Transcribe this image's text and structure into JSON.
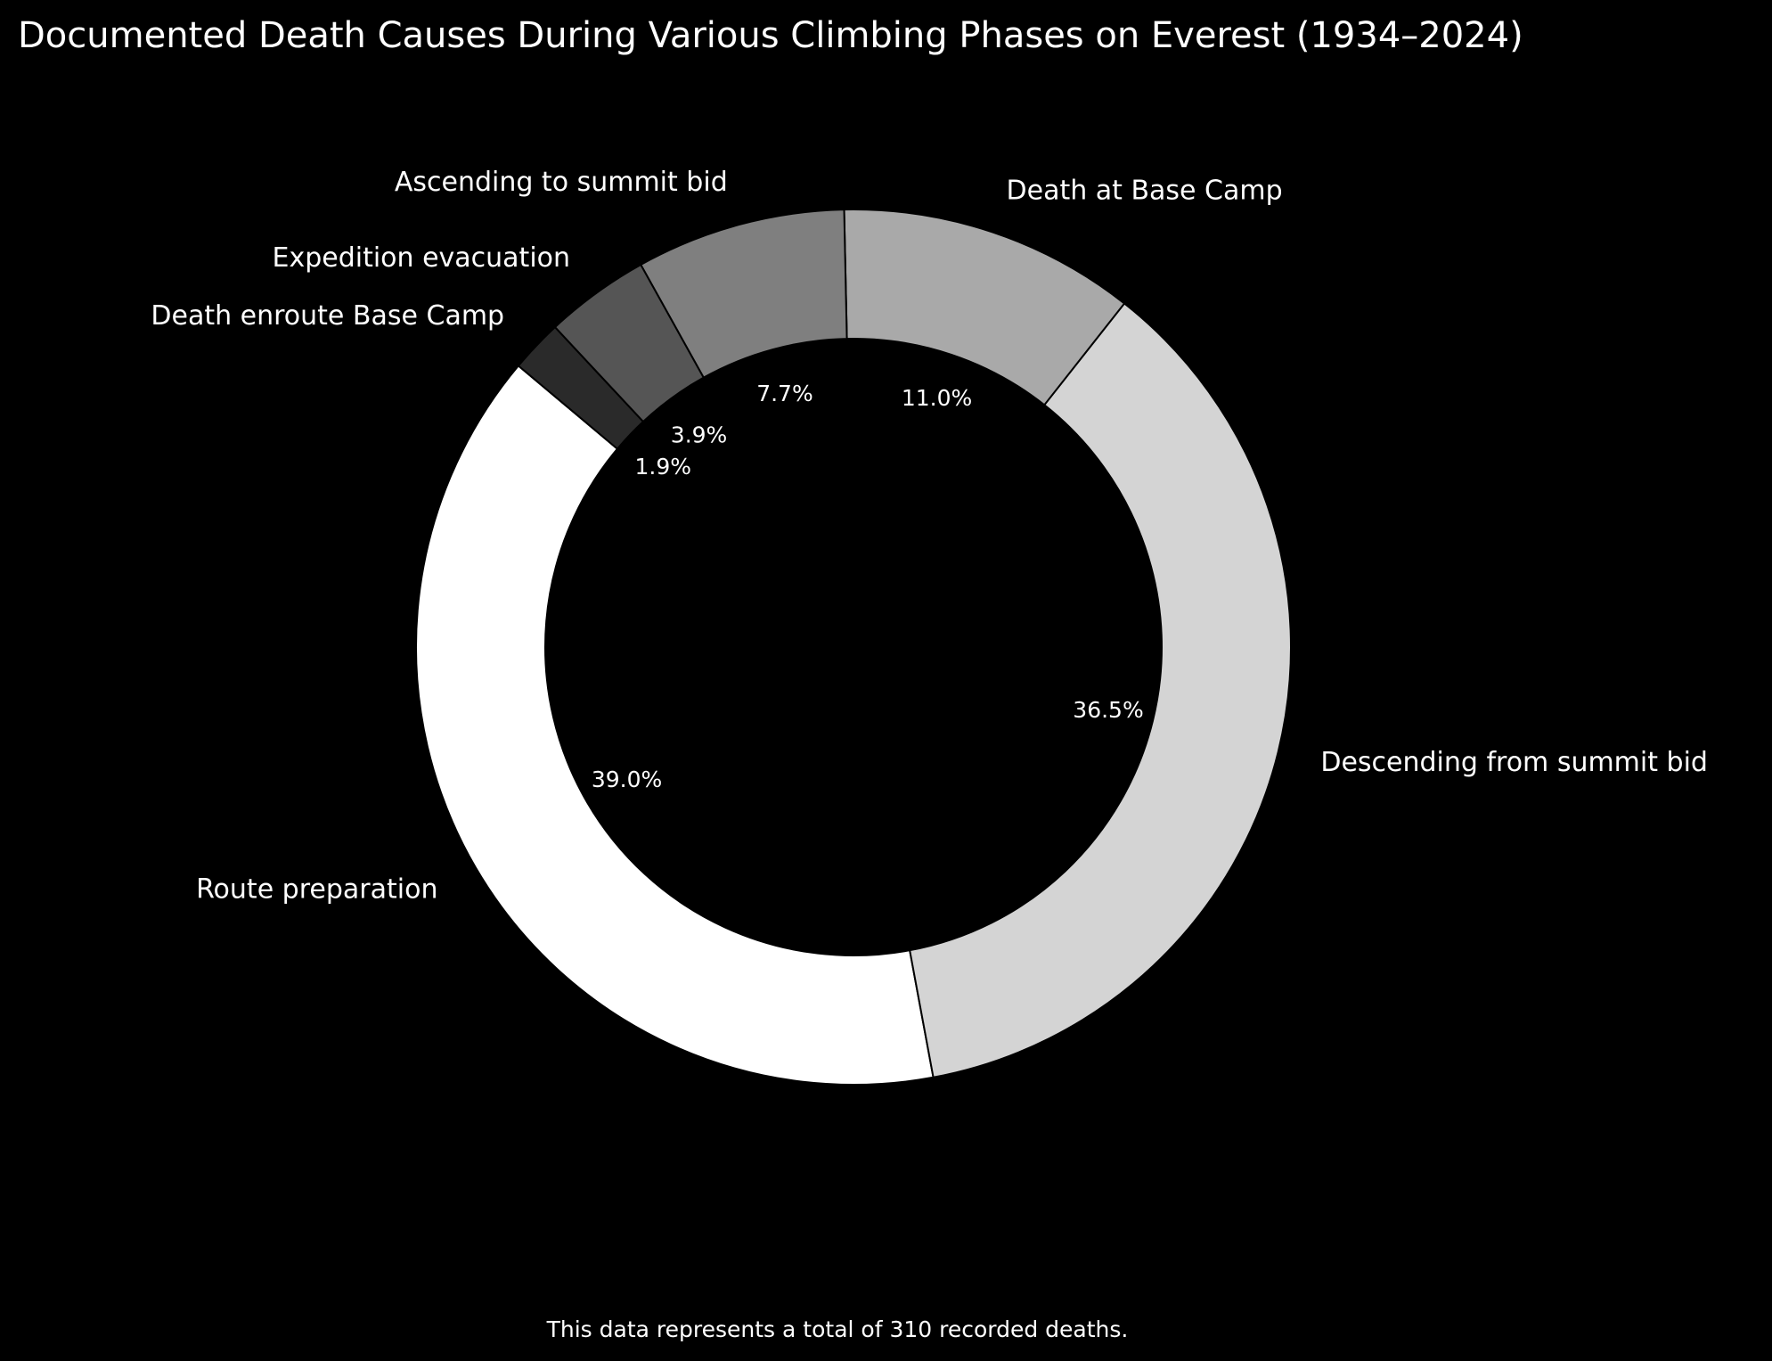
{
  "chart_data": {
    "type": "pie",
    "variant": "donut",
    "title": "Documented Death Causes During Various Climbing Phases on Everest (1934–2024)",
    "footnote": "This data represents a total of 310 recorded deaths.",
    "total": 310,
    "slices": [
      {
        "label": "Route preparation",
        "count": 121,
        "percent_label": "39.0%",
        "color": "#ffffff"
      },
      {
        "label": "Descending from summit bid",
        "count": 113,
        "percent_label": "36.5%",
        "color": "#d4d4d4"
      },
      {
        "label": "Death at Base Camp",
        "count": 34,
        "percent_label": "11.0%",
        "color": "#a9a9a9"
      },
      {
        "label": "Ascending to summit bid",
        "count": 24,
        "percent_label": "7.7%",
        "color": "#7f7f7f"
      },
      {
        "label": "Expedition evacuation",
        "count": 12,
        "percent_label": "3.9%",
        "color": "#555555"
      },
      {
        "label": "Death enroute Base Camp",
        "count": 6,
        "percent_label": "1.9%",
        "color": "#2a2a2a"
      }
    ],
    "start_angle_deg": 140,
    "direction": "counterclockwise",
    "edge_color": "#000000",
    "background": "#000000",
    "text_color": "#ffffff"
  }
}
